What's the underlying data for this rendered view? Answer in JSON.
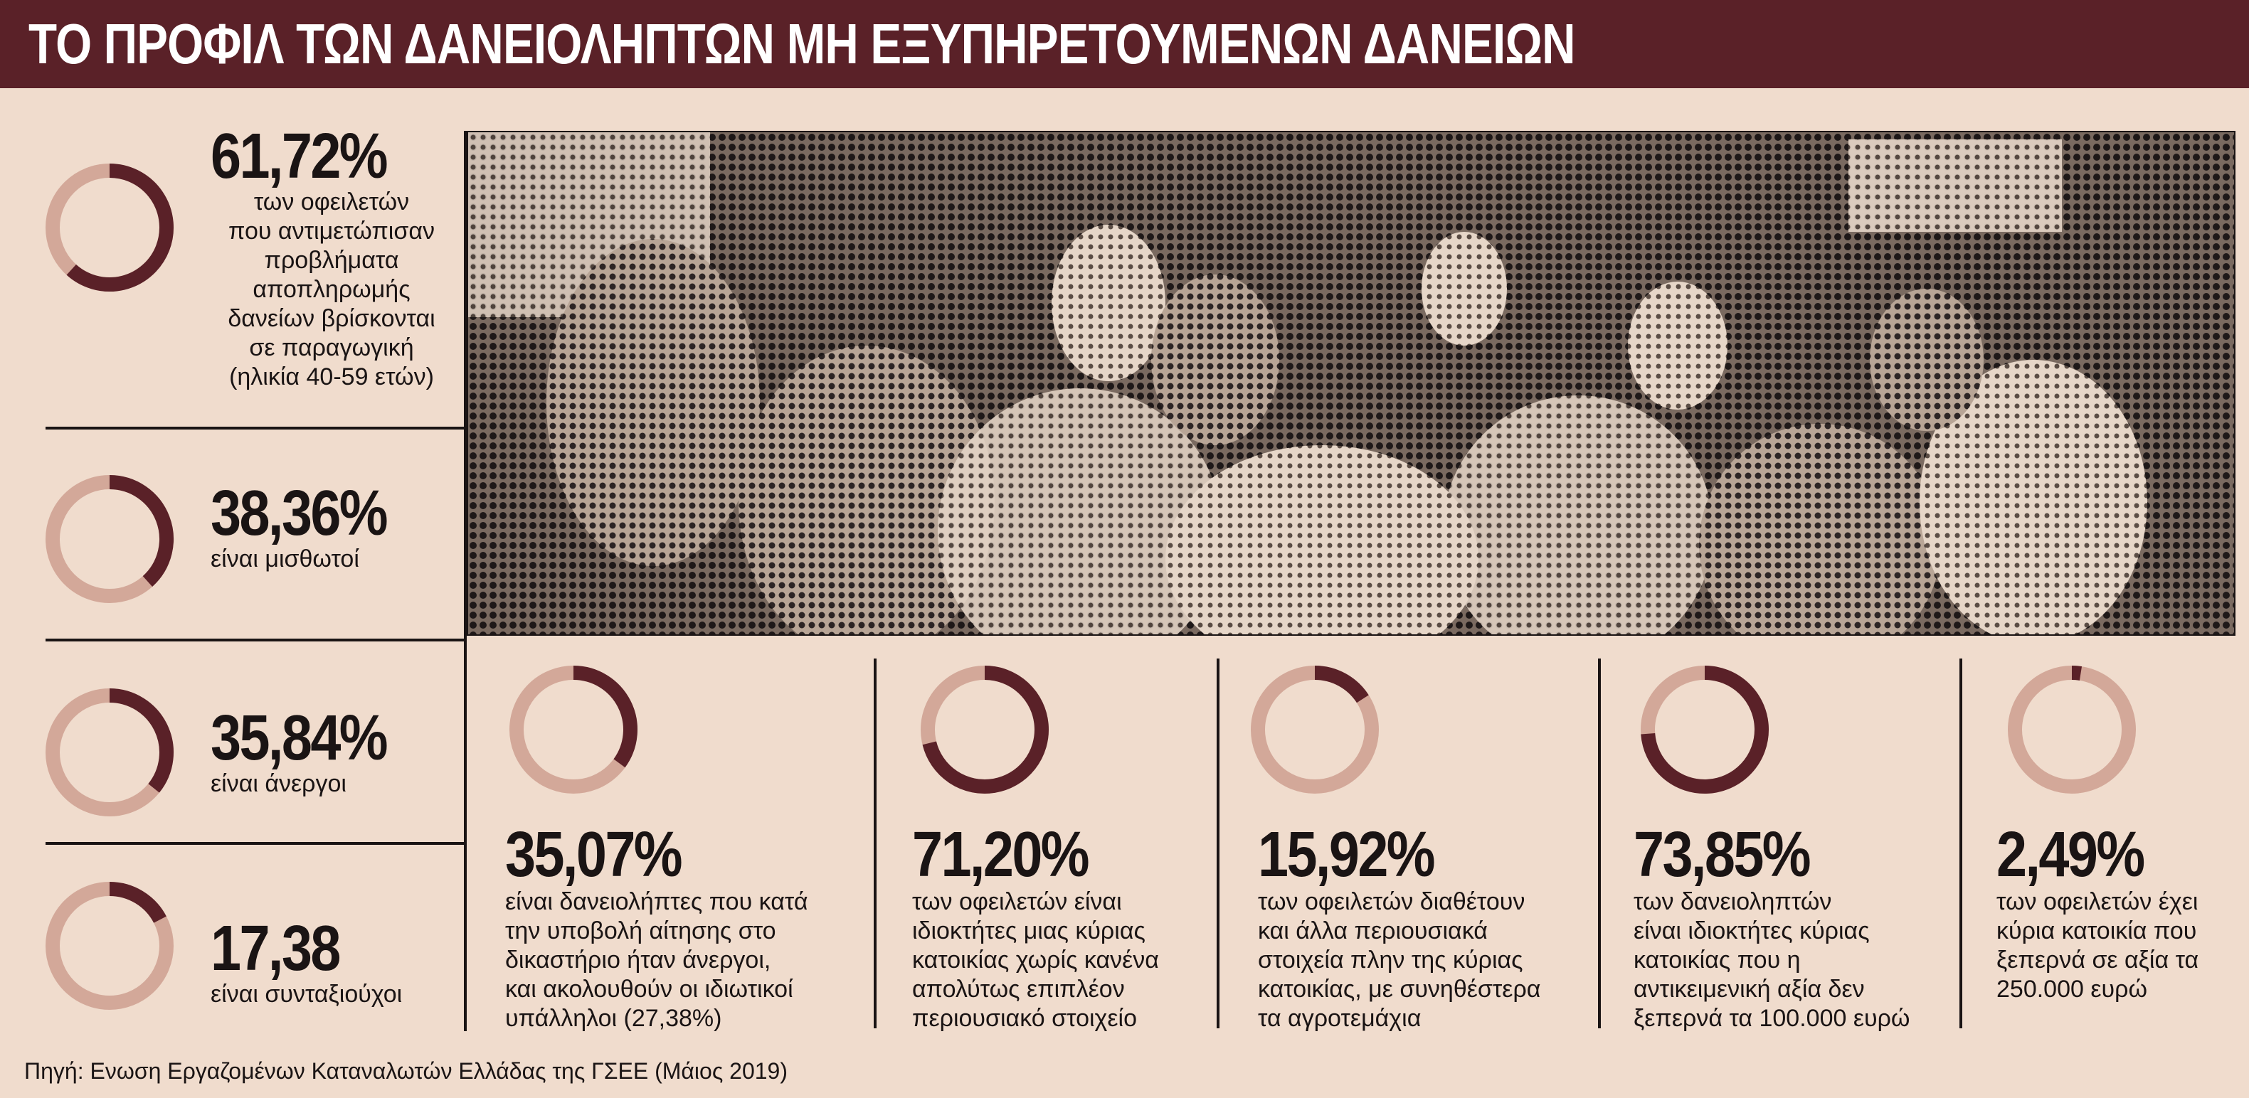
{
  "title": "ΤΟ ΠΡΟΦΙΛ ΤΩΝ ΔΑΝΕΙΟΛΗΠΤΩΝ ΜΗ ΕΞΥΠΗΡΕΤΟΥΜΕΝΩΝ ΔΑΝΕΙΩΝ",
  "source": "Πηγή: Ενωση Εργαζομένων Καταναλωτών Ελλάδας της ΓΣΕΕ (Μάιος 2019)",
  "colors": {
    "accent": "#5a2128",
    "ring": "#d3a899",
    "background": "#f0dccd"
  },
  "chart_data": [
    {
      "type": "pie",
      "id": "age",
      "value_label": "61,72%",
      "values": [
        61.72,
        38.28
      ],
      "text": [
        "των οφειλετών",
        "που αντιμετώπισαν",
        "προβλήματα",
        "αποπληρωμής",
        "δανείων βρίσκονται",
        "σε παραγωγική",
        "(ηλικία 40-59 ετών)"
      ]
    },
    {
      "type": "pie",
      "id": "salaried",
      "value_label": "38,36%",
      "values": [
        38.36,
        61.64
      ],
      "text": [
        "είναι μισθωτοί"
      ]
    },
    {
      "type": "pie",
      "id": "unemployed",
      "value_label": "35,84%",
      "values": [
        35.84,
        64.16
      ],
      "text": [
        "είναι άνεργοι"
      ]
    },
    {
      "type": "pie",
      "id": "pensioners",
      "value_label": "17,38",
      "values": [
        17.38,
        82.62
      ],
      "text": [
        "είναι συνταξιούχοι"
      ]
    },
    {
      "type": "pie",
      "id": "unemployed-at-filing",
      "value_label": "35,07%",
      "values": [
        35.07,
        64.93
      ],
      "text": [
        "είναι δανειολήπτες που κατά",
        "την υποβολή αίτησης στο",
        "δικαστήριο ήταν άνεργοι,",
        "και ακολουθούν οι ιδιωτικοί",
        "υπάλληλοι (27,38%)"
      ]
    },
    {
      "type": "pie",
      "id": "single-home",
      "value_label": "71,20%",
      "values": [
        71.2,
        28.8
      ],
      "text": [
        "των οφειλετών είναι",
        "ιδιοκτήτες μιας κύριας",
        "κατοικίας χωρίς κανένα",
        "απολύτως επιπλέον",
        "περιουσιακό στοιχείο"
      ]
    },
    {
      "type": "pie",
      "id": "other-assets",
      "value_label": "15,92%",
      "values": [
        15.92,
        84.08
      ],
      "text": [
        "των οφειλετών διαθέτουν",
        "και άλλα περιουσιακά",
        "στοιχεία πλην της κύριας",
        "κατοικίας, με συνηθέστερα",
        "τα αγροτεμάχια"
      ]
    },
    {
      "type": "pie",
      "id": "home-under-100k",
      "value_label": "73,85%",
      "values": [
        73.85,
        26.15
      ],
      "text": [
        "των δανειοληπτών",
        "είναι ιδιοκτήτες κύριας",
        "κατοικίας που η",
        "αντικειμενική αξία δεν",
        "ξεπερνά τα 100.000 ευρώ"
      ]
    },
    {
      "type": "pie",
      "id": "home-over-250k",
      "value_label": "2,49%",
      "values": [
        2.49,
        97.51
      ],
      "text": [
        "των οφειλετών έχει",
        "κύρια κατοικία που",
        "ξεπερνά σε αξία τα",
        "250.000 ευρώ"
      ]
    }
  ]
}
